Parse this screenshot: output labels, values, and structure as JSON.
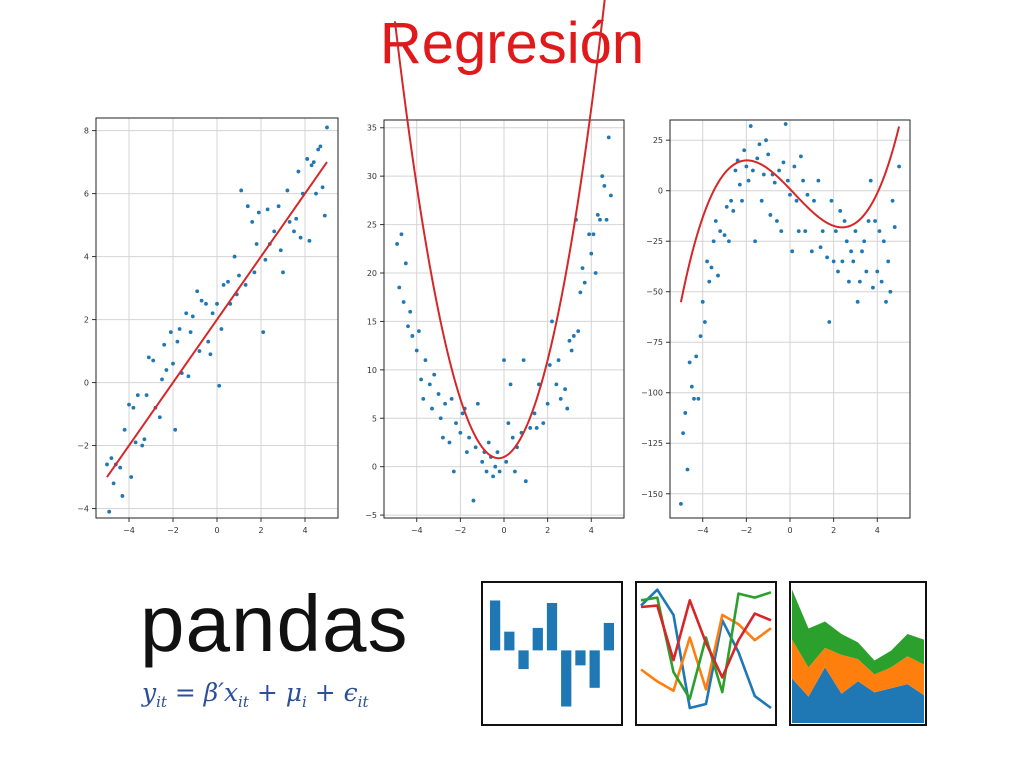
{
  "slide": {
    "title": "Regresión"
  },
  "chart_data": [
    {
      "type": "scatter",
      "title": "",
      "xlabel": "",
      "ylabel": "",
      "xlim": [
        -5.5,
        5.5
      ],
      "ylim": [
        -4.3,
        8.4
      ],
      "xticks": [
        -4,
        -2,
        0,
        2,
        4
      ],
      "yticks": [
        -4,
        -2,
        0,
        2,
        4,
        6,
        8
      ],
      "grid": true,
      "fit": {
        "kind": "polynomial",
        "degree": 1,
        "coefficients": [
          1.0,
          2.0
        ],
        "color": "#d62728"
      },
      "points": [
        [
          -5.0,
          -2.6
        ],
        [
          -4.9,
          -4.1
        ],
        [
          -4.8,
          -2.4
        ],
        [
          -4.7,
          -3.2
        ],
        [
          -4.6,
          -2.6
        ],
        [
          -4.4,
          -2.7
        ],
        [
          -4.3,
          -3.6
        ],
        [
          -4.2,
          -1.5
        ],
        [
          -4.0,
          -0.7
        ],
        [
          -3.9,
          -3.0
        ],
        [
          -3.8,
          -0.8
        ],
        [
          -3.7,
          -1.9
        ],
        [
          -3.6,
          -0.4
        ],
        [
          -3.4,
          -2.0
        ],
        [
          -3.3,
          -1.8
        ],
        [
          -3.2,
          -0.4
        ],
        [
          -3.1,
          0.8
        ],
        [
          -2.9,
          0.7
        ],
        [
          -2.8,
          -0.8
        ],
        [
          -2.6,
          -1.1
        ],
        [
          -2.5,
          0.1
        ],
        [
          -2.4,
          1.2
        ],
        [
          -2.3,
          0.4
        ],
        [
          -2.1,
          1.6
        ],
        [
          -2.0,
          0.6
        ],
        [
          -1.9,
          -1.5
        ],
        [
          -1.8,
          1.3
        ],
        [
          -1.7,
          1.7
        ],
        [
          -1.6,
          0.3
        ],
        [
          -1.4,
          2.2
        ],
        [
          -1.3,
          0.2
        ],
        [
          -1.2,
          1.6
        ],
        [
          -1.1,
          2.1
        ],
        [
          -0.9,
          2.9
        ],
        [
          -0.8,
          1.0
        ],
        [
          -0.7,
          2.6
        ],
        [
          -0.5,
          2.5
        ],
        [
          -0.4,
          1.3
        ],
        [
          -0.3,
          0.9
        ],
        [
          -0.2,
          2.2
        ],
        [
          0.0,
          2.5
        ],
        [
          0.1,
          -0.1
        ],
        [
          0.2,
          1.7
        ],
        [
          0.3,
          3.1
        ],
        [
          0.5,
          3.2
        ],
        [
          0.6,
          2.5
        ],
        [
          0.8,
          4.0
        ],
        [
          0.9,
          2.8
        ],
        [
          1.0,
          3.4
        ],
        [
          1.1,
          6.1
        ],
        [
          1.3,
          3.1
        ],
        [
          1.4,
          5.6
        ],
        [
          1.6,
          5.1
        ],
        [
          1.7,
          3.5
        ],
        [
          1.8,
          4.4
        ],
        [
          1.9,
          5.4
        ],
        [
          2.1,
          1.6
        ],
        [
          2.2,
          3.9
        ],
        [
          2.3,
          5.5
        ],
        [
          2.4,
          4.4
        ],
        [
          2.6,
          4.8
        ],
        [
          2.8,
          5.6
        ],
        [
          2.9,
          4.2
        ],
        [
          3.0,
          3.5
        ],
        [
          3.2,
          6.1
        ],
        [
          3.3,
          5.1
        ],
        [
          3.5,
          4.8
        ],
        [
          3.6,
          5.2
        ],
        [
          3.7,
          6.7
        ],
        [
          3.8,
          4.6
        ],
        [
          3.9,
          6.0
        ],
        [
          4.1,
          7.1
        ],
        [
          4.2,
          4.5
        ],
        [
          4.3,
          6.9
        ],
        [
          4.4,
          7.0
        ],
        [
          4.5,
          6.0
        ],
        [
          4.6,
          7.4
        ],
        [
          4.7,
          7.5
        ],
        [
          4.8,
          6.2
        ],
        [
          4.9,
          5.3
        ],
        [
          5.0,
          8.1
        ]
      ]
    },
    {
      "type": "scatter",
      "title": "",
      "xlabel": "",
      "ylabel": "",
      "xlim": [
        -5.5,
        5.5
      ],
      "ylim": [
        -5.3,
        35.8
      ],
      "xticks": [
        -4,
        -2,
        0,
        2,
        4
      ],
      "yticks": [
        -5,
        0,
        5,
        10,
        15,
        20,
        25,
        30,
        35
      ],
      "grid": true,
      "fit": {
        "kind": "polynomial",
        "degree": 2,
        "coefficients": [
          2.0,
          1.0,
          1.0
        ],
        "color": "#d62728"
      },
      "points": [
        [
          -4.9,
          23.0
        ],
        [
          -4.8,
          18.5
        ],
        [
          -4.7,
          24.0
        ],
        [
          -4.6,
          17.0
        ],
        [
          -4.5,
          21.0
        ],
        [
          -4.4,
          14.5
        ],
        [
          -4.3,
          16.0
        ],
        [
          -4.2,
          13.5
        ],
        [
          -4.0,
          12.0
        ],
        [
          -3.9,
          14.0
        ],
        [
          -3.8,
          9.0
        ],
        [
          -3.7,
          7.0
        ],
        [
          -3.6,
          11.0
        ],
        [
          -3.4,
          8.5
        ],
        [
          -3.3,
          6.0
        ],
        [
          -3.2,
          9.5
        ],
        [
          -3.0,
          7.5
        ],
        [
          -2.9,
          5.0
        ],
        [
          -2.8,
          3.0
        ],
        [
          -2.7,
          6.5
        ],
        [
          -2.5,
          2.5
        ],
        [
          -2.4,
          7.0
        ],
        [
          -2.3,
          -0.5
        ],
        [
          -2.2,
          4.5
        ],
        [
          -2.0,
          3.5
        ],
        [
          -1.9,
          5.5
        ],
        [
          -1.8,
          6.0
        ],
        [
          -1.7,
          1.5
        ],
        [
          -1.6,
          3.0
        ],
        [
          -1.4,
          -3.5
        ],
        [
          -1.3,
          2.0
        ],
        [
          -1.2,
          6.5
        ],
        [
          -1.0,
          0.5
        ],
        [
          -0.9,
          1.5
        ],
        [
          -0.8,
          -0.5
        ],
        [
          -0.7,
          2.5
        ],
        [
          -0.6,
          1.0
        ],
        [
          -0.5,
          -1.0
        ],
        [
          -0.4,
          0.0
        ],
        [
          -0.3,
          1.5
        ],
        [
          -0.2,
          -0.5
        ],
        [
          0.0,
          11.0
        ],
        [
          0.1,
          0.5
        ],
        [
          0.2,
          4.5
        ],
        [
          0.3,
          8.5
        ],
        [
          0.4,
          3.0
        ],
        [
          0.5,
          -0.5
        ],
        [
          0.6,
          2.0
        ],
        [
          0.8,
          3.5
        ],
        [
          0.9,
          11.0
        ],
        [
          1.0,
          -1.5
        ],
        [
          1.2,
          4.0
        ],
        [
          1.4,
          5.5
        ],
        [
          1.5,
          4.0
        ],
        [
          1.6,
          8.5
        ],
        [
          1.8,
          4.5
        ],
        [
          2.0,
          6.5
        ],
        [
          2.1,
          10.5
        ],
        [
          2.2,
          15.0
        ],
        [
          2.4,
          8.5
        ],
        [
          2.5,
          11.0
        ],
        [
          2.6,
          7.0
        ],
        [
          2.8,
          8.0
        ],
        [
          2.9,
          6.0
        ],
        [
          3.0,
          13.0
        ],
        [
          3.1,
          12.0
        ],
        [
          3.2,
          13.5
        ],
        [
          3.3,
          25.5
        ],
        [
          3.4,
          14.0
        ],
        [
          3.5,
          18.0
        ],
        [
          3.6,
          20.5
        ],
        [
          3.7,
          19.0
        ],
        [
          3.9,
          24.0
        ],
        [
          4.0,
          22.0
        ],
        [
          4.1,
          24.0
        ],
        [
          4.2,
          20.0
        ],
        [
          4.3,
          26.0
        ],
        [
          4.4,
          25.5
        ],
        [
          4.5,
          30.0
        ],
        [
          4.6,
          29.0
        ],
        [
          4.7,
          25.5
        ],
        [
          4.8,
          34.0
        ],
        [
          4.9,
          28.0
        ]
      ]
    },
    {
      "type": "scatter",
      "title": "",
      "xlabel": "",
      "ylabel": "",
      "xlim": [
        -5.5,
        5.5
      ],
      "ylim": [
        -162,
        35
      ],
      "xticks": [
        -4,
        -2,
        0,
        2,
        4
      ],
      "yticks": [
        -150,
        -125,
        -100,
        -75,
        -50,
        -25,
        0,
        25
      ],
      "grid": true,
      "fit": {
        "kind": "polynomial",
        "degree": 3,
        "coefficients": [
          0.8,
          -0.5,
          -11.3,
          0.8
        ],
        "color": "#d62728"
      },
      "points": [
        [
          -5.0,
          -155
        ],
        [
          -4.9,
          -120
        ],
        [
          -4.8,
          -110
        ],
        [
          -4.7,
          -138
        ],
        [
          -4.6,
          -85
        ],
        [
          -4.5,
          -97
        ],
        [
          -4.4,
          -103
        ],
        [
          -4.3,
          -82
        ],
        [
          -4.2,
          -103
        ],
        [
          -4.1,
          -72
        ],
        [
          -4.0,
          -55
        ],
        [
          -3.9,
          -65
        ],
        [
          -3.8,
          -35
        ],
        [
          -3.7,
          -45
        ],
        [
          -3.6,
          -38
        ],
        [
          -3.5,
          -25
        ],
        [
          -3.4,
          -15
        ],
        [
          -3.3,
          -42
        ],
        [
          -3.2,
          -20
        ],
        [
          -3.0,
          -22
        ],
        [
          -2.9,
          -8
        ],
        [
          -2.8,
          -25
        ],
        [
          -2.7,
          -5
        ],
        [
          -2.6,
          -10
        ],
        [
          -2.5,
          10
        ],
        [
          -2.4,
          15
        ],
        [
          -2.3,
          3
        ],
        [
          -2.2,
          -5
        ],
        [
          -2.1,
          20
        ],
        [
          -2.0,
          12
        ],
        [
          -1.9,
          5
        ],
        [
          -1.8,
          32
        ],
        [
          -1.7,
          10
        ],
        [
          -1.6,
          -25
        ],
        [
          -1.5,
          16
        ],
        [
          -1.4,
          23
        ],
        [
          -1.3,
          -5
        ],
        [
          -1.2,
          8
        ],
        [
          -1.1,
          25
        ],
        [
          -1.0,
          18
        ],
        [
          -0.9,
          -12
        ],
        [
          -0.8,
          8
        ],
        [
          -0.7,
          4
        ],
        [
          -0.6,
          -15
        ],
        [
          -0.5,
          10
        ],
        [
          -0.4,
          -20
        ],
        [
          -0.3,
          14
        ],
        [
          -0.2,
          33
        ],
        [
          -0.1,
          5
        ],
        [
          0.0,
          -2
        ],
        [
          0.1,
          -30
        ],
        [
          0.2,
          12
        ],
        [
          0.3,
          -5
        ],
        [
          0.4,
          -20
        ],
        [
          0.5,
          17
        ],
        [
          0.6,
          5
        ],
        [
          0.7,
          -20
        ],
        [
          0.8,
          -2
        ],
        [
          1.0,
          -30
        ],
        [
          1.1,
          -5
        ],
        [
          1.3,
          5
        ],
        [
          1.4,
          -28
        ],
        [
          1.5,
          -20
        ],
        [
          1.7,
          -33
        ],
        [
          1.8,
          -65
        ],
        [
          1.9,
          -5
        ],
        [
          2.0,
          -35
        ],
        [
          2.1,
          -20
        ],
        [
          2.2,
          -40
        ],
        [
          2.3,
          -10
        ],
        [
          2.4,
          -35
        ],
        [
          2.5,
          -15
        ],
        [
          2.6,
          -25
        ],
        [
          2.7,
          -45
        ],
        [
          2.8,
          -30
        ],
        [
          2.9,
          -35
        ],
        [
          3.0,
          -20
        ],
        [
          3.1,
          -55
        ],
        [
          3.2,
          -45
        ],
        [
          3.3,
          -30
        ],
        [
          3.4,
          -25
        ],
        [
          3.5,
          -40
        ],
        [
          3.6,
          -15
        ],
        [
          3.7,
          5
        ],
        [
          3.8,
          -48
        ],
        [
          3.9,
          -15
        ],
        [
          4.0,
          -40
        ],
        [
          4.1,
          -20
        ],
        [
          4.2,
          -45
        ],
        [
          4.3,
          -25
        ],
        [
          4.4,
          -55
        ],
        [
          4.5,
          -35
        ],
        [
          4.6,
          -50
        ],
        [
          4.7,
          -5
        ],
        [
          4.8,
          -18
        ],
        [
          5.0,
          12
        ]
      ]
    }
  ],
  "pandas": {
    "wordmark": "pandas",
    "formula": {
      "y": "y",
      "y_sub": "it",
      "eq": " = β′",
      "x": "x",
      "x_sub": "it",
      "plus1": " + ",
      "mu": "μ",
      "mu_sub": "i",
      "plus2": " + ",
      "eps": "ϵ",
      "eps_sub": "it"
    },
    "colors": {
      "blue": "#1f77b4",
      "orange": "#ff7f0e",
      "green": "#2ca02c",
      "red": "#d62728"
    },
    "icon_bars": {
      "values": [
        4,
        1.5,
        -1.5,
        1.8,
        3.8,
        -4.5,
        -1.2,
        -3,
        2.2
      ],
      "ylim": [
        -5.5,
        5
      ]
    },
    "icon_lines": {
      "ylim": [
        0,
        10
      ],
      "series": [
        {
          "color": "blue",
          "values": [
            8.6,
            9.8,
            7.9,
            0.9,
            1.2,
            7.5,
            5.1,
            1.8,
            0.9
          ]
        },
        {
          "color": "orange",
          "values": [
            3.8,
            2.9,
            2.2,
            6.2,
            2.3,
            7.9,
            7.2,
            6.0,
            6.9
          ]
        },
        {
          "color": "green",
          "values": [
            9.0,
            9.2,
            3.6,
            1.6,
            6.2,
            2.1,
            9.5,
            9.2,
            9.6
          ]
        },
        {
          "color": "red",
          "values": [
            8.5,
            8.6,
            4.5,
            9.0,
            5.8,
            3.2,
            6.0,
            8.0,
            7.5
          ]
        }
      ]
    },
    "icon_area": {
      "ylim": [
        0,
        10
      ],
      "layers": [
        {
          "color": "blue",
          "values": [
            3.2,
            1.9,
            4.0,
            2.1,
            3.0,
            2.2,
            2.5,
            2.8,
            2.0
          ]
        },
        {
          "color": "orange",
          "values": [
            2.8,
            2.1,
            1.4,
            2.8,
            1.6,
            1.3,
            1.5,
            2.0,
            2.2
          ]
        },
        {
          "color": "green",
          "values": [
            3.6,
            2.8,
            1.9,
            1.5,
            1.2,
            1.0,
            1.2,
            1.6,
            1.8
          ]
        }
      ]
    }
  }
}
